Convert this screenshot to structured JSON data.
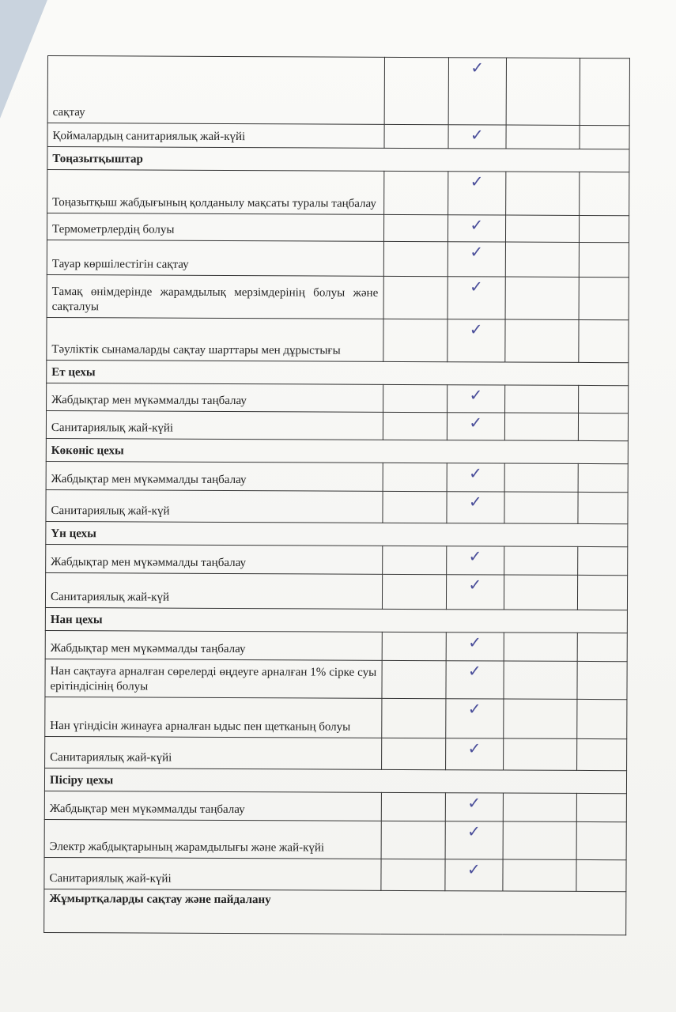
{
  "check_mark": "✓",
  "rows": [
    {
      "type": "item",
      "text": "сақтау",
      "checked": true,
      "h": 85
    },
    {
      "type": "item",
      "text": "Қоймалардың санитариялық жай-күйі",
      "checked": true,
      "h": 30
    },
    {
      "type": "section",
      "text": "Тоңазытқыштар"
    },
    {
      "type": "item",
      "text": "Тоңазытқыш жабдығының қолданылу мақсаты туралы таңбалау",
      "checked": true,
      "h": 55
    },
    {
      "type": "item",
      "text": "Термометрлердің болуы",
      "checked": true,
      "h": 34
    },
    {
      "type": "item",
      "text": "Тауар көршілестігін сақтау",
      "checked": true,
      "h": 44
    },
    {
      "type": "item",
      "text": "Тамақ өнімдерінде жарамдылық мерзімдерінің болуы және сақталуы",
      "checked": true,
      "h": 54
    },
    {
      "type": "item",
      "text": "Тәуліктік сынамаларды сақтау шарттары мен дұрыстығы",
      "checked": true,
      "h": 54
    },
    {
      "type": "section",
      "text": "Ет цехы"
    },
    {
      "type": "item",
      "text": "Жабдықтар мен мүкәммалды таңбалау",
      "checked": true,
      "h": 35
    },
    {
      "type": "item",
      "text": "Санитариялық жай-күйі",
      "checked": true,
      "h": 35
    },
    {
      "type": "section",
      "text": "Көкөніс цехы"
    },
    {
      "type": "item",
      "text": "Жабдықтар мен мүкәммалды таңбалау",
      "checked": true,
      "h": 36
    },
    {
      "type": "item",
      "text": "Санитариялық жай-күй",
      "checked": true,
      "h": 40
    },
    {
      "type": "section",
      "text": "Үн цехы"
    },
    {
      "type": "item",
      "text": "Жабдықтар мен мүкәммалды таңбалау",
      "checked": true,
      "h": 36
    },
    {
      "type": "item",
      "text": "Санитариялық жай-күй",
      "checked": true,
      "h": 44
    },
    {
      "type": "section",
      "text": "Нан цехы"
    },
    {
      "type": "item",
      "text": "Жабдықтар мен мүкәммалды таңбалау",
      "checked": true,
      "h": 36
    },
    {
      "type": "item",
      "text": "Нан сақтауға арналған сөрелерді өңдеуге арналған 1% сірке суы ерітіндісінің болуы",
      "checked": true,
      "h": 48
    },
    {
      "type": "item",
      "text": "Нан үгіндісін жинауға арналған ыдыс пен щетканың болуы",
      "checked": true,
      "h": 50
    },
    {
      "type": "item",
      "text": "Санитариялық жай-күйі",
      "checked": true,
      "h": 40
    },
    {
      "type": "section",
      "text": "Пісіру цехы"
    },
    {
      "type": "item",
      "text": "Жабдықтар мен мүкәммалды таңбалау",
      "checked": true,
      "h": 36
    },
    {
      "type": "item",
      "text": "Электр жабдықтарының жарамдылығы және жай-күйі",
      "checked": true,
      "h": 48
    },
    {
      "type": "item",
      "text": "Санитариялық жай-күйі",
      "checked": true,
      "h": 40
    },
    {
      "type": "section",
      "text": "Жұмыртқаларды сақтау және пайдалану"
    }
  ]
}
